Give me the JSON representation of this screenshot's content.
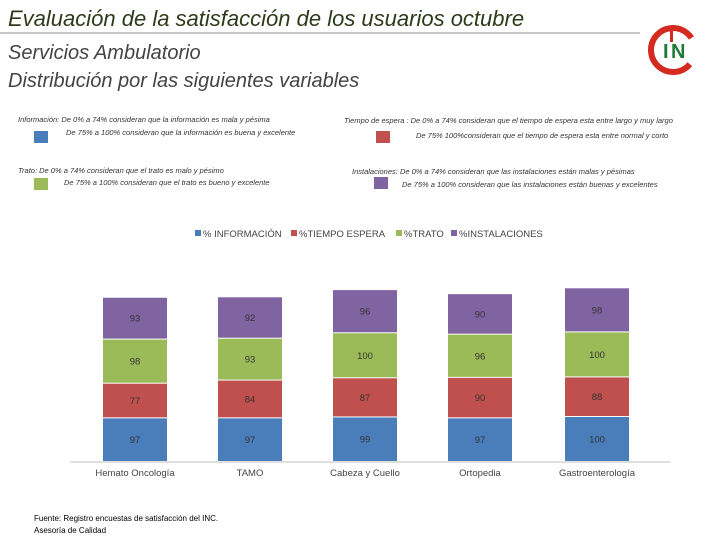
{
  "page": {
    "title": "Evaluación de la satisfacción de los usuarios octubre",
    "subtitle1": "Servicios Ambulatorio",
    "subtitle2": "Distribución por las siguientes variables"
  },
  "notes": {
    "informacion_1": "Información: De 0% a 74% consideran que la información es mala y pésima",
    "informacion_2": "De 75% a 100% consideran que la información es buena y excelente",
    "tiempo_1": "Tiempo de espera : De 0% a 74% consideran que el tiempo de espera esta entre largo y muy largo",
    "tiempo_2": "De 75% 100%consideran que el tiempo de espera esta entre normal y corto",
    "trato_1": "Trato: De 0% a 74% consideran que el trato es malo y pésimo",
    "trato_2": "De 75% a 100% consideran que el trato es bueno y excelente",
    "instalaciones_1": "Instalaciones: De 0% a 74% consideran que las instalaciones están malas y pésimas",
    "instalaciones_2": "De 75% a 100% consideran que las instalaciones están buenas y excelentes"
  },
  "logo": {
    "text_left": "I",
    "text_right": "N"
  },
  "footer": {
    "line1": "Fuente: Registro encuestas de satisfacción del INC.",
    "line2": "Asesoría de Calidad"
  },
  "colors": {
    "informacion": "#4a7ebb",
    "tiempo": "#c0504d",
    "trato": "#9bbb59",
    "instalaciones": "#8064a2",
    "title": "#2f3a1a"
  },
  "chart_data": {
    "type": "bar",
    "stacked": true,
    "categories": [
      "Hemato Oncología",
      "TAMO",
      "Cabeza y Cuello",
      "Ortopedia",
      "Gastroenterología"
    ],
    "series": [
      {
        "name": "% INFORMACIÓN",
        "values": [
          97,
          97,
          99,
          97,
          100
        ]
      },
      {
        "name": "%TIEMPO ESPERA",
        "values": [
          77,
          84,
          87,
          90,
          88
        ]
      },
      {
        "name": "%TRATO",
        "values": [
          98,
          93,
          100,
          96,
          100
        ]
      },
      {
        "name": "%INSTALACIONES",
        "values": [
          93,
          92,
          96,
          90,
          98
        ]
      }
    ],
    "legend_position": "top",
    "grid": false
  }
}
